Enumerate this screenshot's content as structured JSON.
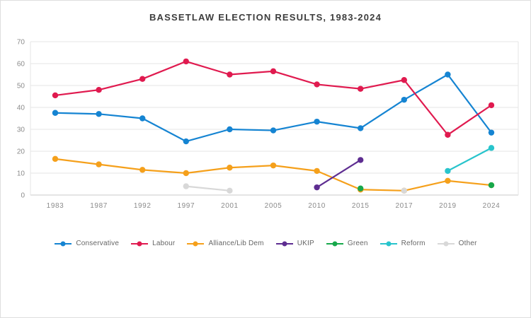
{
  "page": {
    "title": "BASSETLAW ELECTION RESULTS, 1983-2024"
  },
  "chart_data": {
    "type": "line",
    "title": "BASSETLAW ELECTION RESULTS, 1983-2024",
    "categories": [
      "1983",
      "1987",
      "1992",
      "1997",
      "2001",
      "2005",
      "2010",
      "2015",
      "2017",
      "2019",
      "2024"
    ],
    "xlabel": "",
    "ylabel": "",
    "ylim": [
      0,
      70
    ],
    "ytick_step": 10,
    "grid": true,
    "legend_position": "bottom",
    "series": [
      {
        "name": "Conservative",
        "color": "#1584d2",
        "values": [
          37.5,
          37,
          35,
          24.5,
          30,
          29.5,
          33.5,
          30.5,
          43.5,
          55,
          28.5
        ]
      },
      {
        "name": "Labour",
        "color": "#e01a4f",
        "values": [
          45.5,
          48,
          53,
          61,
          55,
          56.5,
          50.5,
          48.5,
          52.5,
          27.5,
          41
        ]
      },
      {
        "name": "Alliance/Lib Dem",
        "color": "#f5a01b",
        "values": [
          16.5,
          14,
          11.5,
          10,
          12.5,
          13.5,
          11,
          2.5,
          2,
          6.5,
          4.5
        ]
      },
      {
        "name": "UKIP",
        "color": "#5e2d91",
        "values": [
          null,
          null,
          null,
          null,
          null,
          null,
          3.5,
          16,
          null,
          null,
          null
        ]
      },
      {
        "name": "Green",
        "color": "#17a84b",
        "values": [
          null,
          null,
          null,
          null,
          null,
          null,
          null,
          3,
          null,
          null,
          4.5
        ]
      },
      {
        "name": "Reform",
        "color": "#28c4cc",
        "values": [
          null,
          null,
          null,
          null,
          null,
          null,
          null,
          null,
          null,
          11,
          21.5
        ]
      },
      {
        "name": "Other",
        "color": "#d8d8d8",
        "values": [
          null,
          null,
          null,
          4,
          2,
          null,
          null,
          null,
          2,
          null,
          null
        ]
      }
    ]
  }
}
